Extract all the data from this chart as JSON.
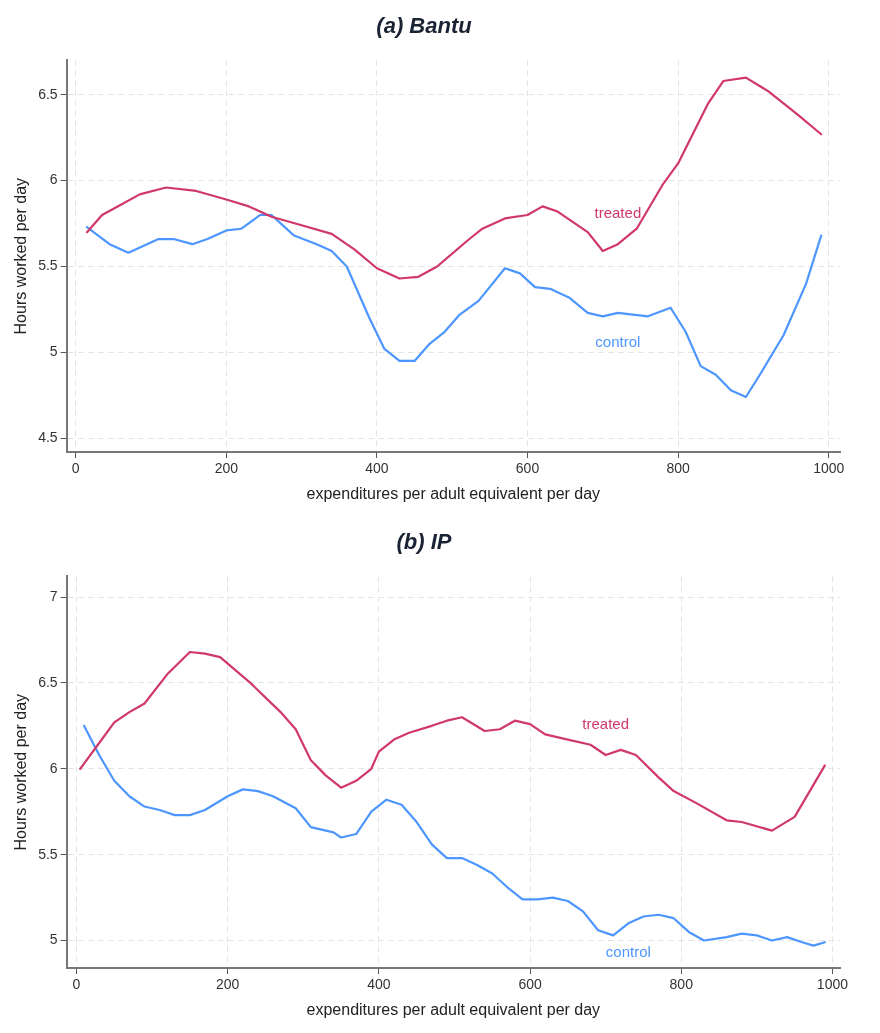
{
  "chart_data": [
    {
      "type": "line",
      "title": "(a) Bantu",
      "xlabel": "expenditures per adult equivalent per day",
      "ylabel": "Hours worked per day",
      "xlim": [
        -12,
        1015
      ],
      "xticks": [
        0,
        200,
        400,
        600,
        800,
        1000
      ],
      "ylim": [
        4.42,
        6.7
      ],
      "yticks": [
        4.5,
        5,
        5.5,
        6,
        6.5
      ],
      "grid": true,
      "legend": false,
      "marker": "none",
      "line_style": "solid",
      "series": [
        {
          "name": "treated",
          "color": "#d0386a",
          "x": [
            15,
            35,
            60,
            85,
            120,
            160,
            200,
            230,
            260,
            300,
            340,
            370,
            400,
            430,
            455,
            480,
            520,
            540,
            570,
            600,
            620,
            640,
            680,
            700,
            720,
            745,
            780,
            800,
            840,
            860,
            890,
            920,
            960,
            990
          ],
          "values": [
            5.7,
            5.8,
            5.86,
            5.92,
            5.96,
            5.94,
            5.89,
            5.85,
            5.79,
            5.74,
            5.69,
            5.6,
            5.49,
            5.43,
            5.44,
            5.5,
            5.65,
            5.72,
            5.78,
            5.8,
            5.85,
            5.82,
            5.7,
            5.59,
            5.63,
            5.72,
            5.98,
            6.1,
            6.45,
            6.58,
            6.6,
            6.52,
            6.38,
            6.27
          ]
        },
        {
          "name": "control",
          "color": "#4d96ff",
          "x": [
            15,
            45,
            70,
            110,
            130,
            155,
            175,
            200,
            220,
            245,
            260,
            290,
            320,
            340,
            360,
            390,
            410,
            430,
            450,
            470,
            490,
            510,
            535,
            570,
            590,
            610,
            630,
            655,
            680,
            700,
            720,
            760,
            790,
            810,
            830,
            850,
            870,
            890,
            910,
            940,
            970,
            990
          ],
          "values": [
            5.73,
            5.63,
            5.58,
            5.66,
            5.66,
            5.63,
            5.66,
            5.71,
            5.72,
            5.8,
            5.8,
            5.68,
            5.63,
            5.59,
            5.5,
            5.2,
            5.02,
            4.95,
            4.95,
            5.05,
            5.12,
            5.22,
            5.3,
            5.49,
            5.46,
            5.38,
            5.37,
            5.32,
            5.23,
            5.21,
            5.23,
            5.21,
            5.26,
            5.12,
            4.92,
            4.87,
            4.78,
            4.74,
            4.88,
            5.1,
            5.4,
            5.68
          ]
        }
      ]
    },
    {
      "type": "line",
      "title": "(b) IP",
      "xlabel": "expenditures per adult equivalent per day",
      "ylabel": "Hours worked per day",
      "xlim": [
        -13,
        1010
      ],
      "xticks": [
        0,
        200,
        400,
        600,
        800,
        1000
      ],
      "ylim": [
        4.84,
        7.12
      ],
      "yticks": [
        5,
        5.5,
        6,
        6.5,
        7
      ],
      "grid": true,
      "legend": false,
      "marker": "none",
      "line_style": "solid",
      "series": [
        {
          "name": "treated",
          "color": "#d0386a",
          "x": [
            5,
            30,
            50,
            70,
            90,
            120,
            150,
            170,
            190,
            230,
            270,
            290,
            310,
            330,
            350,
            370,
            390,
            400,
            420,
            440,
            470,
            490,
            510,
            540,
            560,
            580,
            600,
            620,
            650,
            680,
            700,
            720,
            740,
            770,
            790,
            820,
            860,
            880,
            920,
            950,
            970,
            990
          ],
          "values": [
            6.0,
            6.15,
            6.27,
            6.33,
            6.38,
            6.55,
            6.68,
            6.67,
            6.65,
            6.5,
            6.33,
            6.23,
            6.05,
            5.96,
            5.89,
            5.93,
            6.0,
            6.1,
            6.17,
            6.21,
            6.25,
            6.28,
            6.3,
            6.22,
            6.23,
            6.28,
            6.26,
            6.2,
            6.17,
            6.14,
            6.08,
            6.11,
            6.08,
            5.95,
            5.87,
            5.8,
            5.7,
            5.69,
            5.64,
            5.72,
            5.87,
            6.02
          ]
        },
        {
          "name": "control",
          "color": "#4d96ff",
          "x": [
            10,
            30,
            50,
            70,
            90,
            110,
            130,
            150,
            170,
            200,
            220,
            240,
            260,
            290,
            310,
            340,
            350,
            370,
            390,
            410,
            430,
            450,
            470,
            490,
            510,
            530,
            550,
            570,
            590,
            610,
            630,
            650,
            670,
            690,
            710,
            730,
            750,
            770,
            790,
            810,
            830,
            860,
            880,
            900,
            920,
            940,
            960,
            975,
            990
          ],
          "values": [
            6.25,
            6.08,
            5.93,
            5.84,
            5.78,
            5.76,
            5.73,
            5.73,
            5.76,
            5.84,
            5.88,
            5.87,
            5.84,
            5.77,
            5.66,
            5.63,
            5.6,
            5.62,
            5.75,
            5.82,
            5.79,
            5.69,
            5.56,
            5.48,
            5.48,
            5.44,
            5.39,
            5.31,
            5.24,
            5.24,
            5.25,
            5.23,
            5.17,
            5.06,
            5.03,
            5.1,
            5.14,
            5.15,
            5.13,
            5.05,
            5.0,
            5.02,
            5.04,
            5.03,
            5.0,
            5.02,
            4.99,
            4.97,
            4.99
          ]
        }
      ]
    }
  ]
}
